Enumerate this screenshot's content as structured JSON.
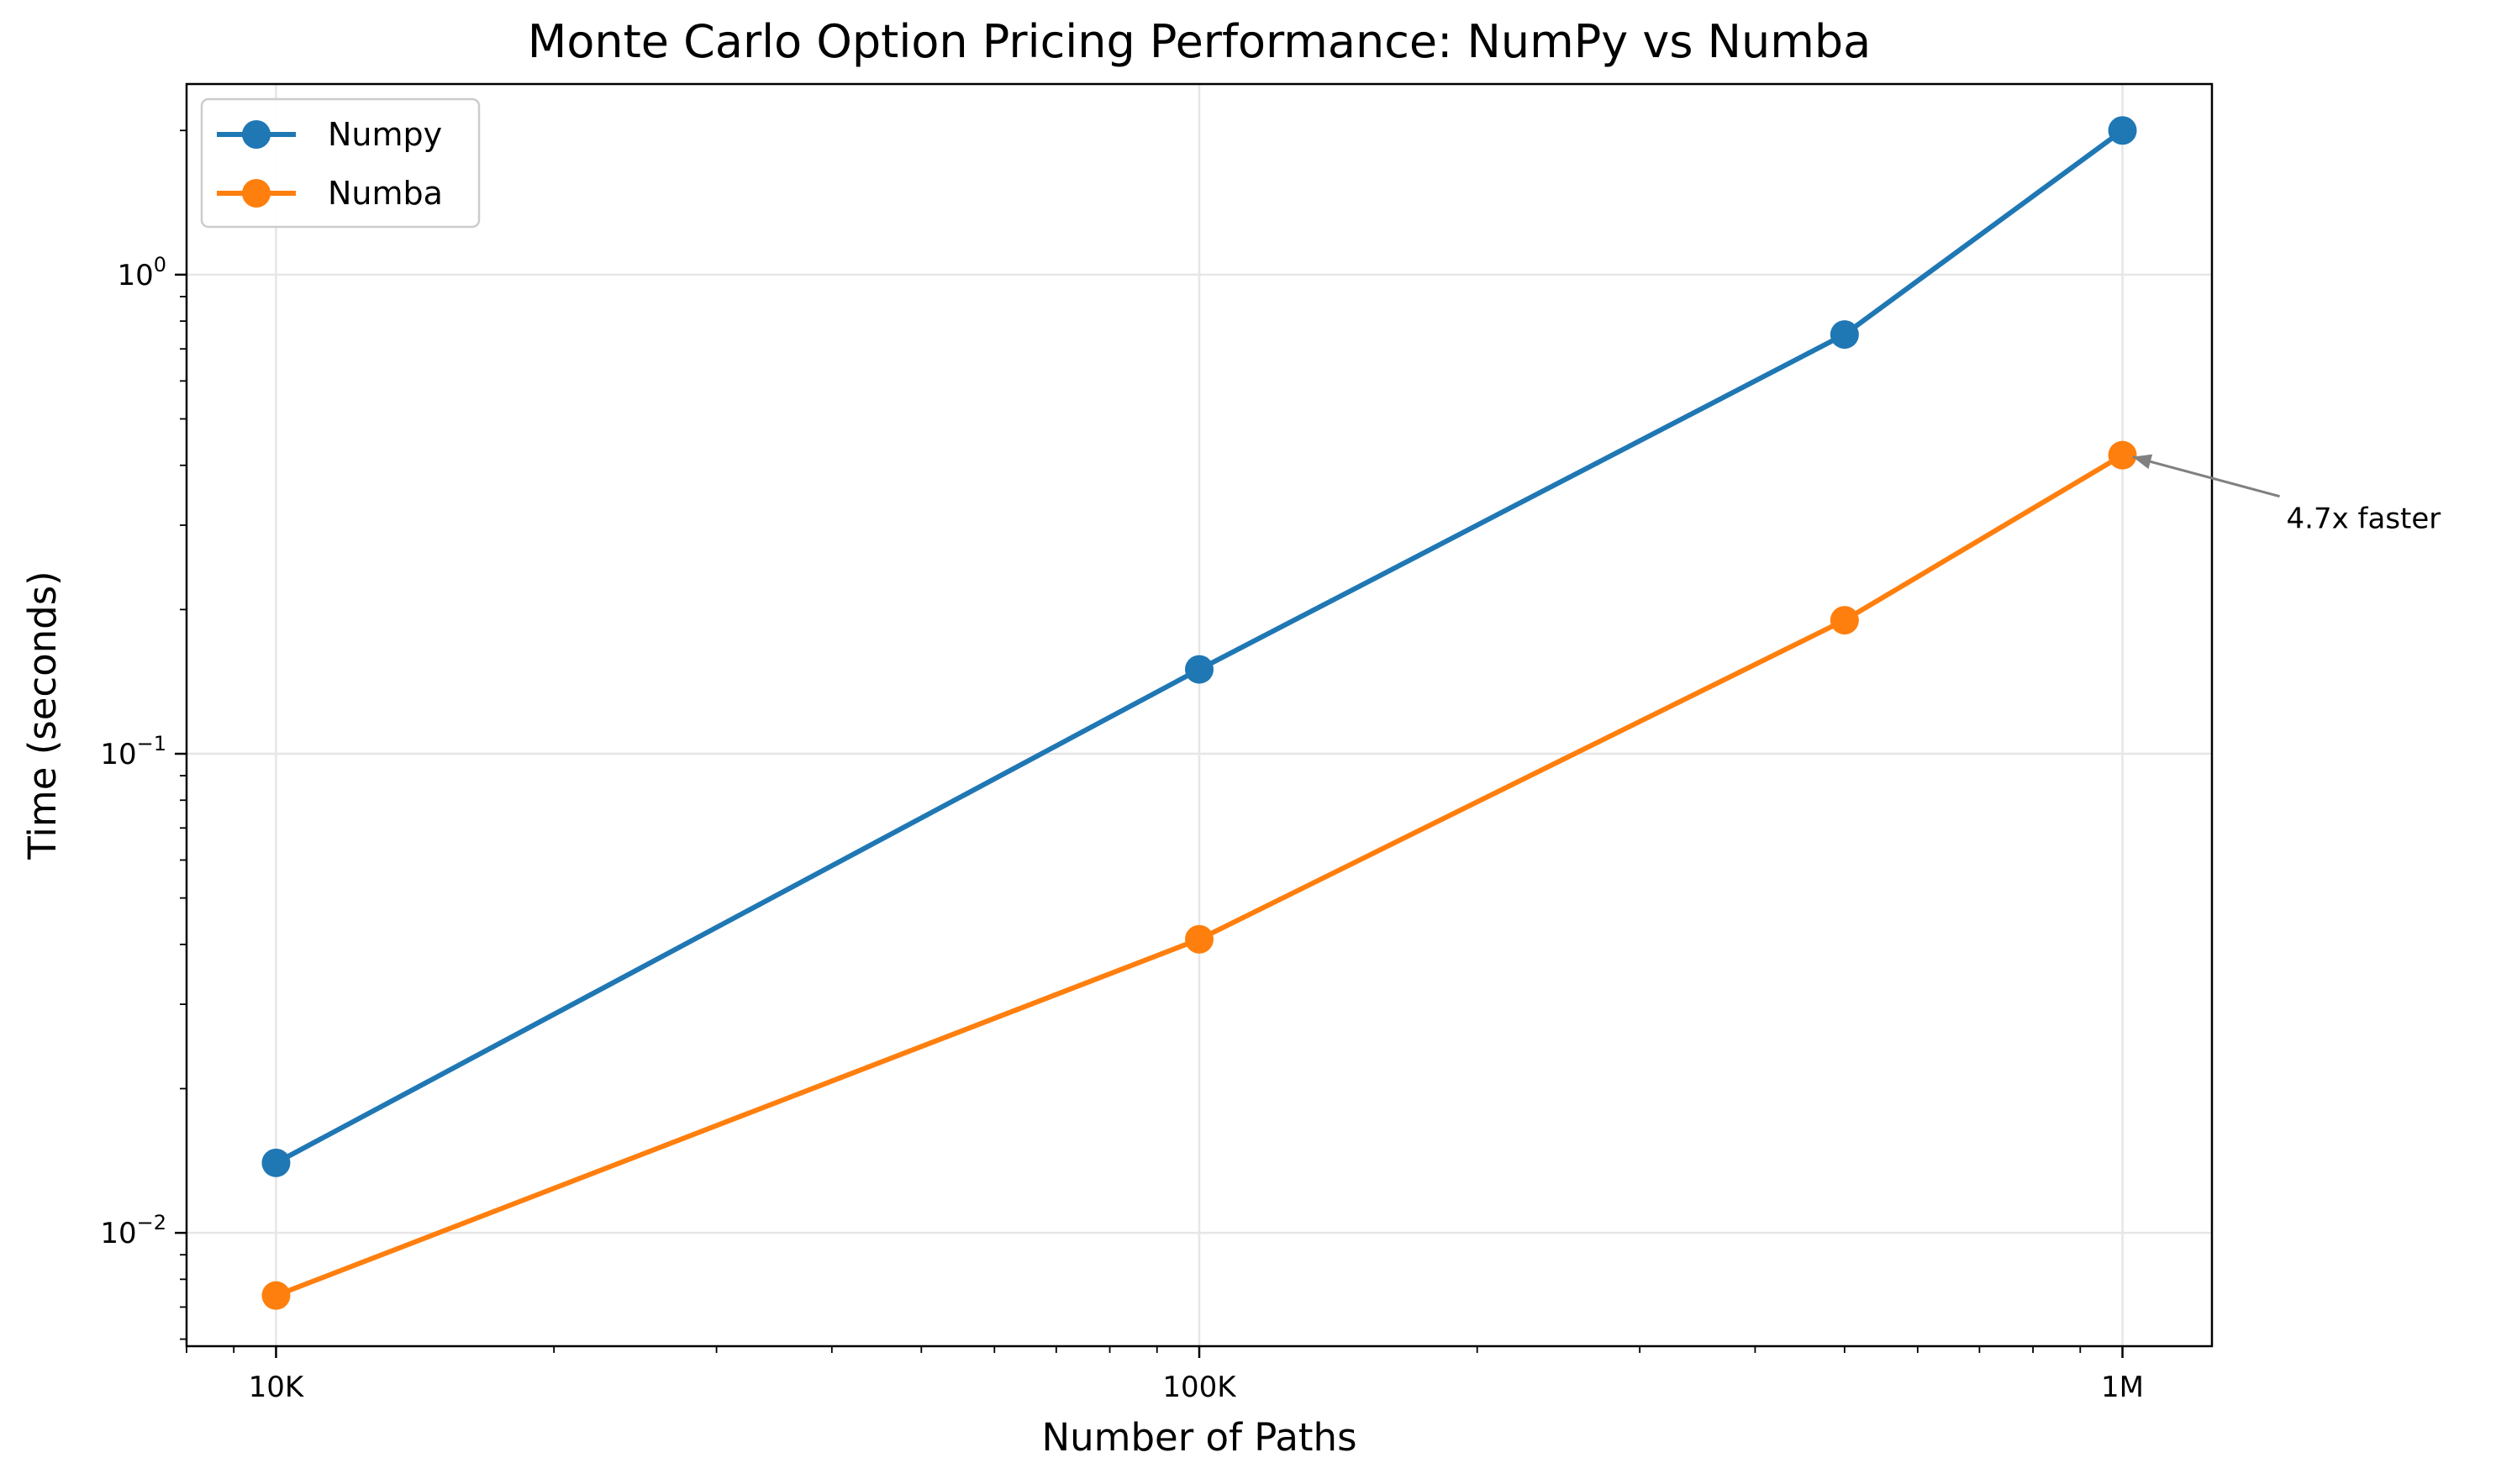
{
  "chart_data": {
    "type": "line",
    "title": "Monte Carlo Option Pricing Performance: NumPy vs Numba",
    "xlabel": "Number of Paths",
    "ylabel": "Time (seconds)",
    "x_scale": "log",
    "y_scale": "log",
    "xlim": [
      8000,
      1250000
    ],
    "ylim": [
      0.0058,
      2.5
    ],
    "x": [
      10000,
      100000,
      500000,
      1000000
    ],
    "x_ticks": [
      {
        "value": 10000,
        "label": "10K"
      },
      {
        "value": 100000,
        "label": "100K"
      },
      {
        "value": 1000000,
        "label": "1M"
      }
    ],
    "y_ticks": [
      {
        "value": 0.01,
        "base": "10",
        "exp": "−2"
      },
      {
        "value": 0.1,
        "base": "10",
        "exp": "−1"
      },
      {
        "value": 1,
        "base": "10",
        "exp": "0"
      }
    ],
    "grid": true,
    "legend_position": "top-left",
    "series": [
      {
        "name": "Numpy",
        "color": "#1f77b4",
        "values": [
          0.014,
          0.15,
          0.75,
          2.0
        ]
      },
      {
        "name": "Numba",
        "color": "#ff7f0e",
        "values": [
          0.0074,
          0.041,
          0.19,
          0.42
        ]
      }
    ],
    "annotations": [
      {
        "text": "4.7x faster",
        "x": 1000000,
        "y": 0.42,
        "arrow_color": "#808080"
      }
    ]
  }
}
